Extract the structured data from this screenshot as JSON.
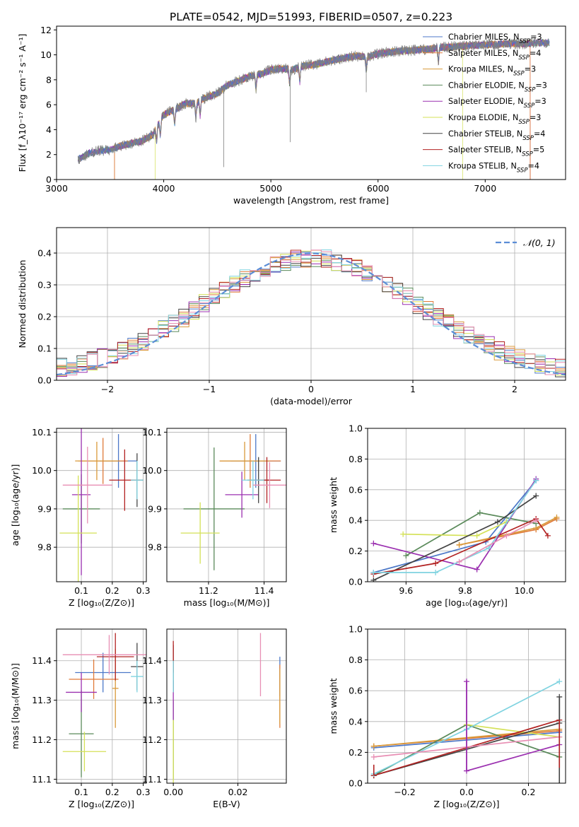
{
  "figure_title": "PLATE=0542, MJD=51993, FIBERID=0507, z=0.223",
  "colors": {
    "Chabrier MILES": "#4c78c8",
    "Salpeter MILES": "#e07b39",
    "Kroupa MILES": "#d99a3a",
    "Chabrier ELODIE": "#5a8a5a",
    "Salpeter ELODIE": "#9b30b0",
    "Kroupa ELODIE": "#d4e157",
    "Chabrier STELIB": "#444444",
    "Salpeter STELIB": "#b22222",
    "Kroupa STELIB": "#7fd3e0",
    "pink": "#e88fb4",
    "normal": "#5b8dd6"
  },
  "chart_data": [
    {
      "id": "spectrum",
      "type": "line",
      "title": "PLATE=0542, MJD=51993, FIBERID=0507, z=0.223",
      "xlabel": "wavelength [Angstrom, rest frame]",
      "ylabel": "Flux [f_λ10⁻¹⁷ erg cm⁻² s⁻¹ A⁻¹]",
      "xlim": [
        3000,
        7750
      ],
      "ylim": [
        0,
        12.3
      ],
      "xticks": [
        "3000",
        "4000",
        "5000",
        "6000",
        "7000"
      ],
      "yticks": [
        "0",
        "2",
        "4",
        "6",
        "8",
        "10",
        "12"
      ],
      "legend_position": "top-right",
      "legend": [
        {
          "label": "Chabrier MILES, N_SSP=3",
          "text": "Chabrier MILES, N",
          "sub": "SSP",
          "tail": "=3"
        },
        {
          "label": "Salpeter MILES, N_SSP=4",
          "text": "Salpeter MILES, N",
          "sub": "SSP",
          "tail": "=4"
        },
        {
          "label": "Kroupa MILES, N_SSP=3",
          "text": "Kroupa MILES, N",
          "sub": "SSP",
          "tail": "=3"
        },
        {
          "label": "Chabrier ELODIE, N_SSP=3",
          "text": "Chabrier ELODIE, N",
          "sub": "SSP",
          "tail": "=3"
        },
        {
          "label": "Salpeter ELODIE, N_SSP=3",
          "text": "Salpeter ELODIE, N",
          "sub": "SSP",
          "tail": "=3"
        },
        {
          "label": "Kroupa ELODIE, N_SSP=3",
          "text": "Kroupa ELODIE, N",
          "sub": "SSP",
          "tail": "=3"
        },
        {
          "label": "Chabrier STELIB, N_SSP=4",
          "text": "Chabrier STELIB, N",
          "sub": "SSP",
          "tail": "=4"
        },
        {
          "label": "Salpeter STELIB, N_SSP=5",
          "text": "Salpeter STELIB, N",
          "sub": "SSP",
          "tail": "=5"
        },
        {
          "label": "Kroupa STELIB, N_SSP=4",
          "text": "Kroupa STELIB, N",
          "sub": "SSP",
          "tail": "=4"
        }
      ],
      "continuum": [
        [
          3200,
          1.6
        ],
        [
          3300,
          2.1
        ],
        [
          3400,
          2.3
        ],
        [
          3500,
          2.4
        ],
        [
          3600,
          2.7
        ],
        [
          3700,
          2.9
        ],
        [
          3800,
          3.1
        ],
        [
          3900,
          3.6
        ],
        [
          4000,
          5.2
        ],
        [
          4100,
          5.6
        ],
        [
          4200,
          6.1
        ],
        [
          4300,
          6.1
        ],
        [
          4400,
          6.6
        ],
        [
          4500,
          6.9
        ],
        [
          4600,
          7.6
        ],
        [
          4700,
          7.9
        ],
        [
          4800,
          8.3
        ],
        [
          4900,
          8.4
        ],
        [
          5000,
          8.8
        ],
        [
          5100,
          8.9
        ],
        [
          5200,
          8.8
        ],
        [
          5300,
          9.1
        ],
        [
          5400,
          9.2
        ],
        [
          5500,
          9.4
        ],
        [
          5600,
          9.6
        ],
        [
          5700,
          9.8
        ],
        [
          5800,
          9.9
        ],
        [
          5900,
          9.8
        ],
        [
          6000,
          10.1
        ],
        [
          6200,
          10.3
        ],
        [
          6400,
          10.4
        ],
        [
          6600,
          10.6
        ],
        [
          6800,
          10.7
        ],
        [
          7000,
          10.8
        ],
        [
          7200,
          10.9
        ],
        [
          7400,
          10.9
        ],
        [
          7600,
          11.0
        ]
      ],
      "starts": {
        "default": 3200,
        "Salpeter MILES": 3540,
        "Kroupa MILES": 3540,
        "Kroupa ELODIE": 3920,
        "Salpeter STELIB": 3540
      },
      "ends": {
        "default": 7600,
        "Salpeter MILES": 7420,
        "Kroupa ELODIE": 6790,
        "Salpeter STELIB": 7420
      }
    },
    {
      "id": "residuals",
      "type": "line",
      "xlabel": "(data-model)/error",
      "ylabel": "Normed distribution",
      "xlim": [
        -2.5,
        2.5
      ],
      "ylim": [
        0,
        0.48
      ],
      "xticks": [
        "−2",
        "−1",
        "0",
        "1",
        "2"
      ],
      "yticks": [
        "0.0",
        "0.1",
        "0.2",
        "0.3",
        "0.4"
      ],
      "legend_position": "top-right",
      "legend": [
        {
          "label": "𝒩(0, 1)"
        }
      ],
      "bin_width": 0.1
    },
    {
      "id": "age_vs_Z",
      "type": "scatter",
      "xlabel": "Z [log₁₀(Z/Z⊙)]",
      "ylabel": "age  [log₁₀(age/yr)]",
      "xlim": [
        0.02,
        0.31
      ],
      "ylim": [
        9.71,
        10.11
      ],
      "xticks": [
        0.1,
        0.2,
        0.3
      ],
      "yticks": [
        9.8,
        9.9,
        10.0,
        10.1
      ],
      "points": [
        {
          "series": "Chabrier MILES",
          "x": 0.22,
          "y": 10.025,
          "xerr": 0.06,
          "yerr": 0.07
        },
        {
          "series": "Salpeter MILES",
          "x": 0.17,
          "y": 10.025,
          "xerr": 0.08,
          "yerr": 0.06
        },
        {
          "series": "Kroupa MILES",
          "x": 0.15,
          "y": 10.025,
          "xerr": 0.07,
          "yerr": 0.05
        },
        {
          "series": "Chabrier ELODIE",
          "x": 0.1,
          "y": 9.9,
          "xerr": 0.06,
          "yerr": 0.09
        },
        {
          "series": "Salpeter ELODIE",
          "x": 0.1,
          "y": 9.937,
          "xerr": 0.03,
          "yerr": 0.21
        },
        {
          "series": "Kroupa ELODIE",
          "x": 0.09,
          "y": 9.837,
          "xerr": 0.06,
          "yerr": 0.15
        },
        {
          "series": "Chabrier STELIB",
          "x": 0.28,
          "y": 9.975,
          "xerr": 0.02,
          "yerr": 0.07
        },
        {
          "series": "Salpeter STELIB",
          "x": 0.24,
          "y": 9.975,
          "xerr": 0.05,
          "yerr": 0.08
        },
        {
          "series": "Kroupa STELIB",
          "x": 0.28,
          "y": 9.975,
          "xerr": 0.02,
          "yerr": 0.05
        },
        {
          "series": "pink",
          "x": 0.12,
          "y": 9.962,
          "xerr": 0.08,
          "yerr": 0.1
        }
      ]
    },
    {
      "id": "age_vs_mass",
      "type": "scatter",
      "xlabel": "mass [log₁₀(M/M⊙)]",
      "ylabel": "",
      "xlim": [
        11.05,
        11.48
      ],
      "ylim": [
        9.71,
        10.11
      ],
      "xticks": [
        11.2,
        11.4
      ],
      "yticks": [
        9.8,
        9.9,
        10.0,
        10.1
      ],
      "points": [
        {
          "series": "Chabrier MILES",
          "x": 11.37,
          "y": 10.025,
          "xerr": 0.09,
          "yerr": 0.07
        },
        {
          "series": "Salpeter MILES",
          "x": 11.35,
          "y": 10.025,
          "xerr": 0.11,
          "yerr": 0.07
        },
        {
          "series": "Kroupa MILES",
          "x": 11.33,
          "y": 10.025,
          "xerr": 0.09,
          "yerr": 0.05
        },
        {
          "series": "Chabrier ELODIE",
          "x": 11.22,
          "y": 9.9,
          "xerr": 0.11,
          "yerr": 0.16
        },
        {
          "series": "Salpeter ELODIE",
          "x": 11.32,
          "y": 9.937,
          "xerr": 0.06,
          "yerr": 0.06
        },
        {
          "series": "Kroupa ELODIE",
          "x": 11.17,
          "y": 9.837,
          "xerr": 0.07,
          "yerr": 0.08
        },
        {
          "series": "Chabrier STELIB",
          "x": 11.38,
          "y": 9.975,
          "xerr": 0.04,
          "yerr": 0.06
        },
        {
          "series": "Salpeter STELIB",
          "x": 11.41,
          "y": 9.975,
          "xerr": 0.05,
          "yerr": 0.06
        },
        {
          "series": "Kroupa STELIB",
          "x": 11.36,
          "y": 9.975,
          "xerr": 0.04,
          "yerr": 0.05
        },
        {
          "series": "pink",
          "x": 11.42,
          "y": 9.962,
          "xerr": 0.06,
          "yerr": 0.06
        }
      ]
    },
    {
      "id": "weight_vs_age",
      "type": "line",
      "xlabel": "age  [log₁₀(age/yr)]",
      "ylabel": "mass weight",
      "xlim": [
        9.47,
        10.14
      ],
      "ylim": [
        0,
        1
      ],
      "xticks": [
        9.6,
        9.8,
        10.0
      ],
      "yticks": [
        0.0,
        0.2,
        0.4,
        0.6,
        0.8,
        1.0
      ],
      "series": [
        {
          "name": "Chabrier MILES",
          "x": [
            9.49,
            9.87,
            10.04
          ],
          "y": [
            0.06,
            0.26,
            0.66
          ]
        },
        {
          "name": "Salpeter MILES",
          "x": [
            9.78,
            10.04,
            10.11
          ],
          "y": [
            0.24,
            0.34,
            0.41
          ]
        },
        {
          "name": "Kroupa MILES",
          "x": [
            9.78,
            10.04,
            10.11
          ],
          "y": [
            0.24,
            0.35,
            0.42
          ]
        },
        {
          "name": "Chabrier ELODIE",
          "x": [
            9.6,
            9.85,
            10.04
          ],
          "y": [
            0.17,
            0.45,
            0.38
          ]
        },
        {
          "name": "Salpeter ELODIE",
          "x": [
            9.49,
            9.84,
            10.04
          ],
          "y": [
            0.25,
            0.08,
            0.67
          ]
        },
        {
          "name": "Kroupa ELODIE",
          "x": [
            9.59,
            9.84,
            9.94
          ],
          "y": [
            0.31,
            0.3,
            0.39
          ]
        },
        {
          "name": "Chabrier STELIB",
          "x": [
            9.49,
            9.91,
            10.04
          ],
          "y": [
            0.01,
            0.39,
            0.56
          ]
        },
        {
          "name": "Salpeter STELIB",
          "x": [
            9.49,
            9.7,
            10.04,
            10.08
          ],
          "y": [
            0.05,
            0.12,
            0.41,
            0.3
          ]
        },
        {
          "name": "Kroupa STELIB",
          "x": [
            9.49,
            9.7,
            9.88,
            10.04
          ],
          "y": [
            0.06,
            0.06,
            0.22,
            0.66
          ]
        },
        {
          "name": "pink",
          "x": [
            9.78,
            9.94,
            10.04
          ],
          "y": [
            0.13,
            0.3,
            0.4
          ]
        }
      ]
    },
    {
      "id": "mass_vs_Z",
      "type": "scatter",
      "xlabel": "Z [log₁₀(Z/Z⊙)]",
      "ylabel": "mass [log₁₀(M/M⊙)]",
      "xlim": [
        0.02,
        0.31
      ],
      "ylim": [
        11.09,
        11.48
      ],
      "xticks": [
        0.1,
        0.2,
        0.3
      ],
      "yticks": [
        11.1,
        11.2,
        11.3,
        11.4
      ],
      "points": [
        {
          "series": "Chabrier MILES",
          "x": 0.17,
          "y": 11.37,
          "xerr": 0.09,
          "yerr": 0.05
        },
        {
          "series": "Salpeter MILES",
          "x": 0.14,
          "y": 11.353,
          "xerr": 0.08,
          "yerr": 0.05
        },
        {
          "series": "Kroupa MILES",
          "x": 0.21,
          "y": 11.33,
          "xerr": 0.01,
          "yerr": 0.1
        },
        {
          "series": "Chabrier ELODIE",
          "x": 0.1,
          "y": 11.215,
          "xerr": 0.04,
          "yerr": 0.11
        },
        {
          "series": "Salpeter ELODIE",
          "x": 0.1,
          "y": 11.32,
          "xerr": 0.05,
          "yerr": 0.05
        },
        {
          "series": "Kroupa ELODIE",
          "x": 0.11,
          "y": 11.17,
          "xerr": 0.07,
          "yerr": 0.05
        },
        {
          "series": "Chabrier STELIB",
          "x": 0.28,
          "y": 11.385,
          "xerr": 0.02,
          "yerr": 0.06
        },
        {
          "series": "Salpeter STELIB",
          "x": 0.21,
          "y": 11.41,
          "xerr": 0.06,
          "yerr": 0.06
        },
        {
          "series": "Kroupa STELIB",
          "x": 0.28,
          "y": 11.36,
          "xerr": 0.02,
          "yerr": 0.04
        },
        {
          "series": "pink",
          "x": 0.19,
          "y": 11.415,
          "xerr": 0.15,
          "yerr": 0.05
        }
      ]
    },
    {
      "id": "mass_vs_EBV",
      "type": "scatter",
      "xlabel": "E(B-V)",
      "ylabel": "",
      "xlim": [
        -0.002,
        0.035
      ],
      "ylim": [
        11.09,
        11.48
      ],
      "xticks": [
        0.0,
        0.02
      ],
      "yticks": [
        11.1,
        11.2,
        11.3,
        11.4
      ],
      "points": [
        {
          "series": "Chabrier MILES",
          "x": 0.033,
          "y": 11.36,
          "xerr": 0,
          "yerr": 0.05
        },
        {
          "series": "Salpeter MILES",
          "x": 0.033,
          "y": 11.31,
          "xerr": 0,
          "yerr": 0.08
        },
        {
          "series": "Kroupa MILES",
          "x": 0.033,
          "y": 11.31,
          "xerr": 0,
          "yerr": 0.07
        },
        {
          "series": "Chabrier ELODIE",
          "x": 0.0,
          "y": 11.2,
          "xerr": 0,
          "yerr": 0.1
        },
        {
          "series": "Salpeter ELODIE",
          "x": 0.0,
          "y": 11.3,
          "xerr": 0,
          "yerr": 0.05
        },
        {
          "series": "Kroupa ELODIE",
          "x": 0.0,
          "y": 11.17,
          "xerr": 0,
          "yerr": 0.08
        },
        {
          "series": "Chabrier STELIB",
          "x": 0.0,
          "y": 11.38,
          "xerr": 0,
          "yerr": 0.06
        },
        {
          "series": "Salpeter STELIB",
          "x": 0.0,
          "y": 11.41,
          "xerr": 0,
          "yerr": 0.04
        },
        {
          "series": "Kroupa STELIB",
          "x": 0.0,
          "y": 11.36,
          "xerr": 0,
          "yerr": 0.04
        },
        {
          "series": "pink",
          "x": 0.027,
          "y": 11.39,
          "xerr": 0,
          "yerr": 0.08
        }
      ]
    },
    {
      "id": "weight_vs_Z",
      "type": "line",
      "xlabel": "Z [log₁₀(Z/Z⊙)]",
      "ylabel": "mass weight",
      "xlim": [
        -0.32,
        0.32
      ],
      "ylim": [
        0,
        1
      ],
      "xticks": [
        -0.2,
        0.0,
        0.2
      ],
      "yticks": [
        0.0,
        0.2,
        0.4,
        0.6,
        0.8,
        1.0
      ],
      "series": [
        {
          "name": "Chabrier MILES",
          "x": [
            -0.3,
            0.3
          ],
          "y": [
            0.23,
            0.33
          ]
        },
        {
          "name": "Salpeter MILES",
          "x": [
            -0.3,
            0.3
          ],
          "y": [
            0.24,
            0.34
          ]
        },
        {
          "name": "Kroupa MILES",
          "x": [
            -0.3,
            0.3
          ],
          "y": [
            0.24,
            0.35
          ]
        },
        {
          "name": "Chabrier ELODIE",
          "x": [
            -0.3,
            0.0,
            0.3
          ],
          "y": [
            0.05,
            0.38,
            0.17
          ]
        },
        {
          "name": "Salpeter ELODIE",
          "x": [
            0.0,
            0.0,
            0.3
          ],
          "y": [
            0.66,
            0.08,
            0.25
          ]
        },
        {
          "name": "Kroupa ELODIE",
          "x": [
            0.0,
            0.3
          ],
          "y": [
            0.38,
            0.3
          ]
        },
        {
          "name": "Chabrier STELIB",
          "x": [
            -0.3,
            0.3,
            0.3
          ],
          "y": [
            0.05,
            0.39,
            0.56
          ]
        },
        {
          "name": "Salpeter STELIB",
          "x": [
            -0.3,
            0.3
          ],
          "y": [
            0.05,
            0.41
          ]
        },
        {
          "name": "Kroupa STELIB",
          "x": [
            -0.3,
            0.0,
            0.3
          ],
          "y": [
            0.06,
            0.35,
            0.66
          ]
        },
        {
          "name": "pink",
          "x": [
            -0.3,
            0.3
          ],
          "y": [
            0.17,
            0.3
          ]
        }
      ],
      "vertical_errorbars": [
        {
          "series": "Salpeter ELODIE",
          "x": 0.0,
          "y0": 0.08,
          "y1": 0.67
        },
        {
          "series": "Chabrier STELIB",
          "x": 0.3,
          "y0": 0.0,
          "y1": 0.56
        },
        {
          "series": "Salpeter STELIB",
          "x": -0.3,
          "y0": 0.05,
          "y1": 0.12
        },
        {
          "series": "Salpeter STELIB",
          "x": 0.3,
          "y0": 0.1,
          "y1": 0.41
        }
      ]
    }
  ]
}
